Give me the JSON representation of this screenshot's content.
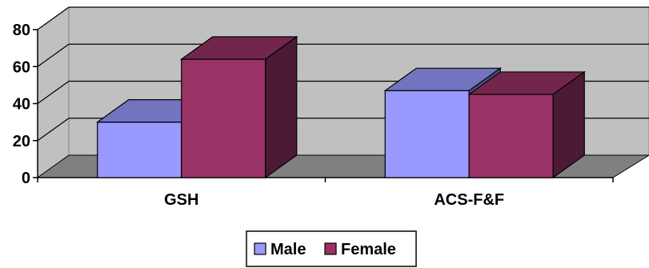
{
  "chart_data": {
    "type": "bar",
    "categories": [
      "GSH",
      "ACS-F&F"
    ],
    "series": [
      {
        "name": "Male",
        "values": [
          30,
          47
        ],
        "color": "#9999ff"
      },
      {
        "name": "Female",
        "values": [
          64,
          45
        ],
        "color": "#993366"
      }
    ],
    "ylim": [
      0,
      80
    ],
    "yticks": [
      "0",
      "20",
      "40",
      "60",
      "80"
    ],
    "grid": true,
    "legend": "bottom",
    "wall_color": "#c0c0c0",
    "floor_color": "#808080"
  }
}
